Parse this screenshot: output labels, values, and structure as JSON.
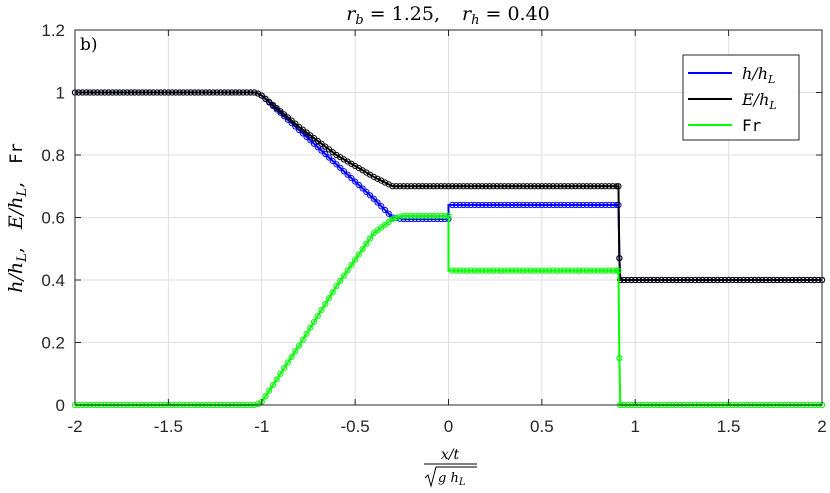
{
  "chart_data": {
    "type": "line",
    "title": {
      "rb_label": "r",
      "rb_sub": "b",
      "rb_value": " = 1.25,",
      "rh_label": "r",
      "rh_sub": "h",
      "rh_value": " = 0.40"
    },
    "panel_label": "b)",
    "xlabel": {
      "numerator": "x/t",
      "denominator_g": "g h",
      "denominator_sub": "L"
    },
    "ylabel": {
      "part1": "h/h",
      "part1_sub": "L",
      "sep1": ",   ",
      "part2": "E/h",
      "part2_sub": "L",
      "sep2": ",   ",
      "part3": "Fr"
    },
    "xlim": [
      -2,
      2
    ],
    "ylim": [
      0,
      1.2
    ],
    "x_ticks": [
      -2,
      -1.5,
      -1,
      -0.5,
      0,
      0.5,
      1,
      1.5,
      2
    ],
    "x_tick_labels": [
      "-2",
      "-1.5",
      "-1",
      "-0.5",
      "0",
      "0.5",
      "1",
      "1.5",
      "2"
    ],
    "y_ticks": [
      0,
      0.2,
      0.4,
      0.6,
      0.8,
      1,
      1.2
    ],
    "y_tick_labels": [
      "0",
      "0.2",
      "0.4",
      "0.6",
      "0.8",
      "1",
      "1.2"
    ],
    "grid": true,
    "legend_position": "top-right",
    "series": [
      {
        "name": "h/h",
        "name_sub": "L",
        "name_style": "math",
        "color": "#0000ff",
        "points": [
          [
            -2,
            1
          ],
          [
            -1.03,
            1
          ],
          [
            -1.0,
            0.99
          ],
          [
            -0.8,
            0.88
          ],
          [
            -0.6,
            0.77
          ],
          [
            -0.4,
            0.66
          ],
          [
            -0.3,
            0.6
          ],
          [
            -0.25,
            0.595
          ],
          [
            0,
            0.595
          ],
          [
            0,
            0.64
          ],
          [
            0.91,
            0.64
          ],
          [
            0.915,
            0.47
          ],
          [
            0.92,
            0.4
          ],
          [
            2,
            0.4
          ]
        ]
      },
      {
        "name": "E/h",
        "name_sub": "L",
        "name_style": "math",
        "color": "#000000",
        "points": [
          [
            -2,
            1
          ],
          [
            -1.03,
            1
          ],
          [
            -1.0,
            0.99
          ],
          [
            -0.8,
            0.89
          ],
          [
            -0.6,
            0.8
          ],
          [
            -0.4,
            0.73
          ],
          [
            -0.3,
            0.7
          ],
          [
            -0.25,
            0.7
          ],
          [
            0.91,
            0.7
          ],
          [
            0.915,
            0.47
          ],
          [
            0.92,
            0.4
          ],
          [
            2,
            0.4
          ]
        ]
      },
      {
        "name": "Fr",
        "name_sub": "",
        "name_style": "mono",
        "color": "#00ff00",
        "points": [
          [
            -2,
            0
          ],
          [
            -1.03,
            0
          ],
          [
            -1.0,
            0.01
          ],
          [
            -0.8,
            0.19
          ],
          [
            -0.6,
            0.38
          ],
          [
            -0.4,
            0.55
          ],
          [
            -0.3,
            0.595
          ],
          [
            -0.25,
            0.605
          ],
          [
            0,
            0.605
          ],
          [
            0,
            0.43
          ],
          [
            0.91,
            0.43
          ],
          [
            0.915,
            0.15
          ],
          [
            0.92,
            0
          ],
          [
            2,
            0
          ]
        ]
      }
    ]
  }
}
